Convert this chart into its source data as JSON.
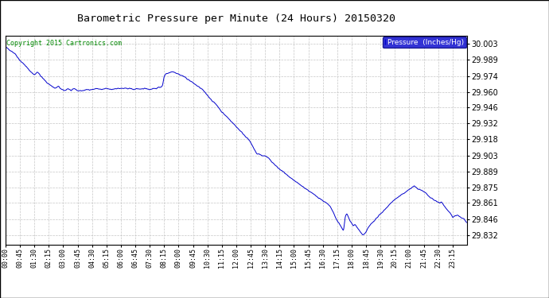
{
  "title": "Barometric Pressure per Minute (24 Hours) 20150320",
  "copyright_text": "Copyright 2015 Cartronics.com",
  "legend_text": "Pressure  (Inches/Hg)",
  "background_color": "#ffffff",
  "plot_bg_color": "#ffffff",
  "line_color": "#0000cc",
  "legend_bg_color": "#0000cc",
  "legend_text_color": "#ffffff",
  "grid_color": "#c0c0c0",
  "title_color": "#000000",
  "copyright_color": "#008800",
  "yticks": [
    29.832,
    29.846,
    29.861,
    29.875,
    29.889,
    29.903,
    29.918,
    29.932,
    29.946,
    29.96,
    29.974,
    29.989,
    30.003
  ],
  "ylim": [
    29.824,
    30.01
  ],
  "xtick_labels": [
    "00:00",
    "00:45",
    "01:30",
    "02:15",
    "03:00",
    "03:45",
    "04:30",
    "05:15",
    "06:00",
    "06:45",
    "07:30",
    "08:15",
    "09:00",
    "09:45",
    "10:30",
    "11:15",
    "12:00",
    "12:45",
    "13:30",
    "14:15",
    "15:00",
    "15:45",
    "16:30",
    "17:15",
    "18:00",
    "18:45",
    "19:30",
    "20:15",
    "21:00",
    "21:45",
    "22:30",
    "23:15"
  ],
  "num_points": 1440,
  "waypoints": [
    [
      0,
      30.0
    ],
    [
      30,
      29.994
    ],
    [
      45,
      29.988
    ],
    [
      60,
      29.984
    ],
    [
      75,
      29.979
    ],
    [
      90,
      29.975
    ],
    [
      100,
      29.978
    ],
    [
      110,
      29.974
    ],
    [
      120,
      29.971
    ],
    [
      130,
      29.968
    ],
    [
      140,
      29.966
    ],
    [
      155,
      29.963
    ],
    [
      165,
      29.965
    ],
    [
      175,
      29.962
    ],
    [
      185,
      29.961
    ],
    [
      195,
      29.963
    ],
    [
      205,
      29.961
    ],
    [
      215,
      29.963
    ],
    [
      225,
      29.961
    ],
    [
      240,
      29.961
    ],
    [
      255,
      29.962
    ],
    [
      270,
      29.962
    ],
    [
      285,
      29.963
    ],
    [
      300,
      29.962
    ],
    [
      315,
      29.963
    ],
    [
      330,
      29.962
    ],
    [
      345,
      29.963
    ],
    [
      360,
      29.963
    ],
    [
      375,
      29.963
    ],
    [
      390,
      29.963
    ],
    [
      400,
      29.962
    ],
    [
      410,
      29.963
    ],
    [
      420,
      29.962
    ],
    [
      430,
      29.963
    ],
    [
      440,
      29.963
    ],
    [
      450,
      29.962
    ],
    [
      460,
      29.963
    ],
    [
      470,
      29.963
    ],
    [
      480,
      29.964
    ],
    [
      490,
      29.965
    ],
    [
      495,
      29.974
    ],
    [
      500,
      29.976
    ],
    [
      510,
      29.977
    ],
    [
      520,
      29.978
    ],
    [
      525,
      29.978
    ],
    [
      530,
      29.977
    ],
    [
      540,
      29.976
    ],
    [
      545,
      29.975
    ],
    [
      555,
      29.974
    ],
    [
      560,
      29.973
    ],
    [
      565,
      29.972
    ],
    [
      570,
      29.971
    ],
    [
      575,
      29.97
    ],
    [
      580,
      29.969
    ],
    [
      585,
      29.968
    ],
    [
      590,
      29.967
    ],
    [
      600,
      29.965
    ],
    [
      610,
      29.963
    ],
    [
      615,
      29.962
    ],
    [
      620,
      29.96
    ],
    [
      630,
      29.957
    ],
    [
      645,
      29.952
    ],
    [
      660,
      29.948
    ],
    [
      675,
      29.942
    ],
    [
      690,
      29.938
    ],
    [
      700,
      29.935
    ],
    [
      710,
      29.932
    ],
    [
      720,
      29.929
    ],
    [
      730,
      29.926
    ],
    [
      740,
      29.923
    ],
    [
      750,
      29.92
    ],
    [
      760,
      29.917
    ],
    [
      770,
      29.912
    ],
    [
      780,
      29.907
    ],
    [
      785,
      29.904
    ],
    [
      790,
      29.905
    ],
    [
      795,
      29.904
    ],
    [
      800,
      29.903
    ],
    [
      810,
      29.903
    ],
    [
      820,
      29.901
    ],
    [
      830,
      29.898
    ],
    [
      840,
      29.895
    ],
    [
      855,
      29.891
    ],
    [
      870,
      29.888
    ],
    [
      885,
      29.884
    ],
    [
      900,
      29.881
    ],
    [
      915,
      29.878
    ],
    [
      930,
      29.875
    ],
    [
      945,
      29.872
    ],
    [
      960,
      29.869
    ],
    [
      975,
      29.866
    ],
    [
      990,
      29.863
    ],
    [
      1005,
      29.86
    ],
    [
      1015,
      29.857
    ],
    [
      1020,
      29.854
    ],
    [
      1025,
      29.851
    ],
    [
      1030,
      29.848
    ],
    [
      1035,
      29.845
    ],
    [
      1040,
      29.843
    ],
    [
      1045,
      29.841
    ],
    [
      1050,
      29.838
    ],
    [
      1055,
      29.836
    ],
    [
      1060,
      29.849
    ],
    [
      1065,
      29.852
    ],
    [
      1070,
      29.848
    ],
    [
      1075,
      29.845
    ],
    [
      1080,
      29.843
    ],
    [
      1085,
      29.84
    ],
    [
      1090,
      29.842
    ],
    [
      1095,
      29.84
    ],
    [
      1100,
      29.838
    ],
    [
      1105,
      29.836
    ],
    [
      1110,
      29.834
    ],
    [
      1115,
      29.832
    ],
    [
      1120,
      29.833
    ],
    [
      1125,
      29.835
    ],
    [
      1130,
      29.838
    ],
    [
      1135,
      29.84
    ],
    [
      1140,
      29.842
    ],
    [
      1150,
      29.845
    ],
    [
      1160,
      29.848
    ],
    [
      1170,
      29.851
    ],
    [
      1180,
      29.854
    ],
    [
      1190,
      29.857
    ],
    [
      1200,
      29.86
    ],
    [
      1210,
      29.863
    ],
    [
      1220,
      29.865
    ],
    [
      1230,
      29.867
    ],
    [
      1240,
      29.869
    ],
    [
      1250,
      29.871
    ],
    [
      1260,
      29.873
    ],
    [
      1270,
      29.875
    ],
    [
      1275,
      29.876
    ],
    [
      1280,
      29.875
    ],
    [
      1290,
      29.873
    ],
    [
      1300,
      29.872
    ],
    [
      1305,
      29.871
    ],
    [
      1310,
      29.87
    ],
    [
      1315,
      29.869
    ],
    [
      1320,
      29.867
    ],
    [
      1325,
      29.866
    ],
    [
      1330,
      29.865
    ],
    [
      1335,
      29.864
    ],
    [
      1340,
      29.863
    ],
    [
      1350,
      29.862
    ],
    [
      1355,
      29.861
    ],
    [
      1360,
      29.862
    ],
    [
      1365,
      29.86
    ],
    [
      1370,
      29.858
    ],
    [
      1375,
      29.856
    ],
    [
      1380,
      29.854
    ],
    [
      1390,
      29.851
    ],
    [
      1395,
      29.848
    ],
    [
      1400,
      29.849
    ],
    [
      1410,
      29.85
    ],
    [
      1420,
      29.848
    ],
    [
      1430,
      29.847
    ],
    [
      1439,
      29.843
    ]
  ]
}
